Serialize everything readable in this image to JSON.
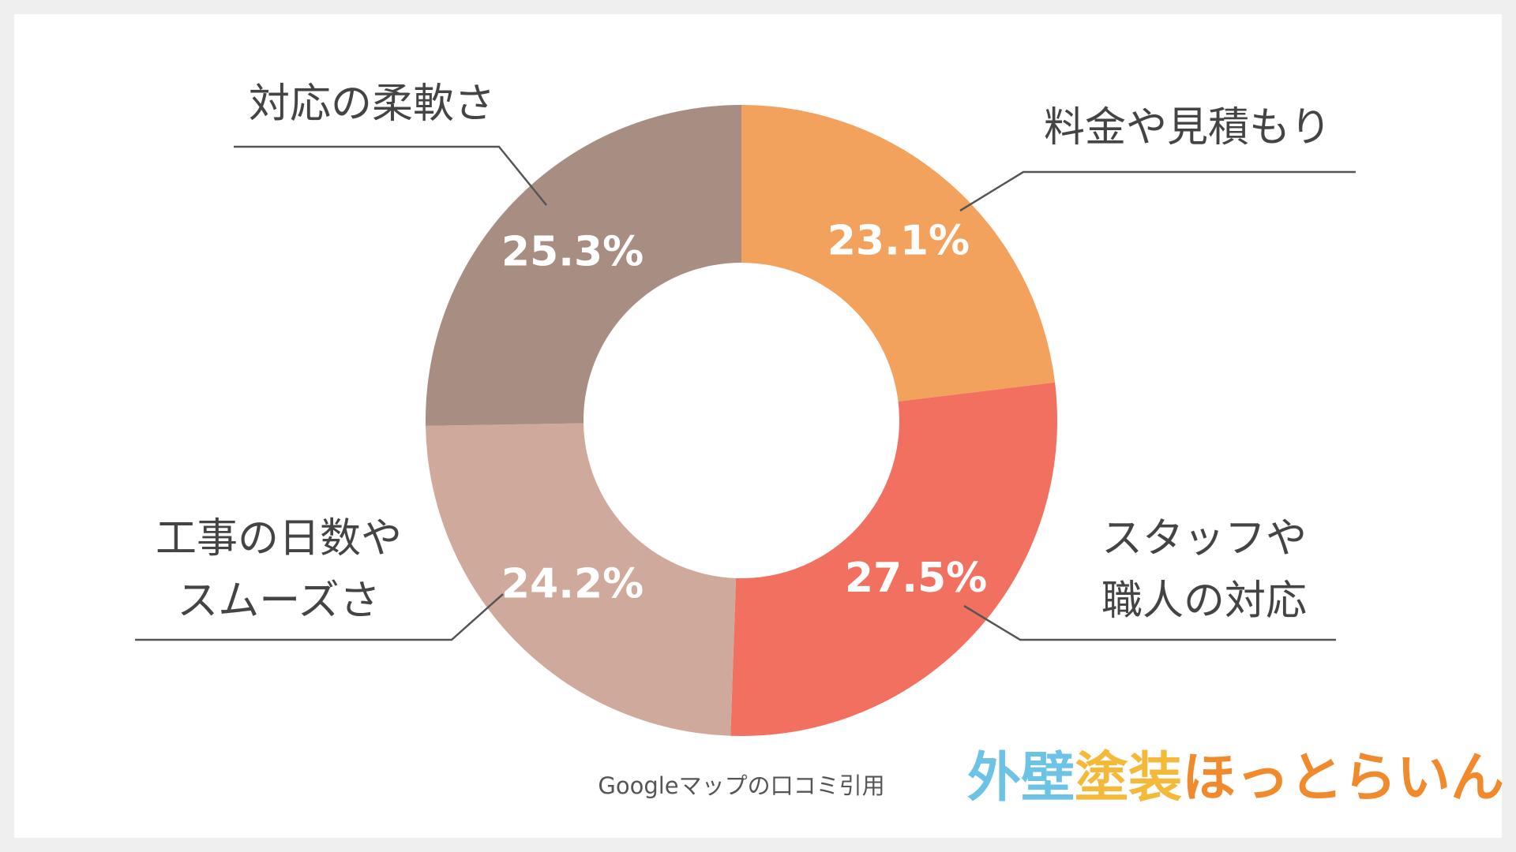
{
  "chart_data": {
    "type": "donut",
    "categories": [
      "料金や見積もり",
      "スタッフや\n職人の対応",
      "工事の日数や\nスムーズさ",
      "対応の柔軟さ"
    ],
    "values": [
      23.1,
      27.5,
      24.2,
      25.3
    ],
    "value_labels": [
      "23.1%",
      "27.5%",
      "24.2%",
      "25.3%"
    ],
    "colors": [
      "#f2a25c",
      "#f27060",
      "#cfa99b",
      "#a88e82"
    ],
    "source": "Googleマップの口コミ引用"
  },
  "logo": [
    {
      "text": "外壁",
      "color": "#6cc3e6"
    },
    {
      "text": "塗装",
      "color": "#f5b93a"
    },
    {
      "text": "ほっとらいん",
      "color": "#f08a2c"
    }
  ]
}
